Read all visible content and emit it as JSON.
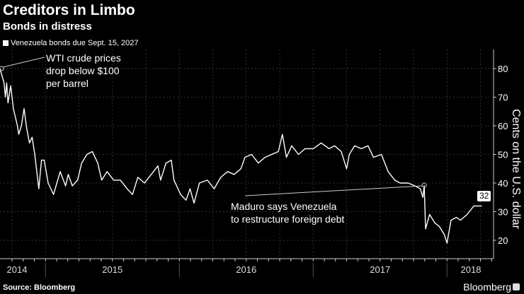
{
  "header": {
    "title": "Creditors in Limbo",
    "subtitle": "Bonds in distress"
  },
  "footer": {
    "source": "Source: Bloomberg",
    "brand": "Bloomberg"
  },
  "chart_data": {
    "type": "line",
    "title": "Creditors in Limbo",
    "subtitle": "Bonds in distress",
    "ylabel": "Cents on the U.S. dollar",
    "xlabel": "",
    "ylim": [
      13,
      85
    ],
    "xlim": [
      2014.66,
      2018.35
    ],
    "yticks": [
      "20",
      "30",
      "40",
      "50",
      "60",
      "70",
      "80"
    ],
    "xticks": [
      "2014",
      "2015",
      "2016",
      "2017",
      "2018"
    ],
    "legend": "top-left",
    "last_value_label": "32",
    "series": [
      {
        "name": "Venezuela bonds due Sept. 15, 2027",
        "color": "#ffffff",
        "x": [
          2014.66,
          2014.69,
          2014.7,
          2014.71,
          2014.72,
          2014.74,
          2014.76,
          2014.79,
          2014.8,
          2014.82,
          2014.84,
          2014.86,
          2014.88,
          2014.9,
          2014.92,
          2014.95,
          2014.97,
          2014.99,
          2015.02,
          2015.06,
          2015.11,
          2015.15,
          2015.17,
          2015.2,
          2015.24,
          2015.27,
          2015.31,
          2015.35,
          2015.39,
          2015.42,
          2015.46,
          2015.51,
          2015.56,
          2015.61,
          2015.65,
          2015.69,
          2015.74,
          2015.79,
          2015.84,
          2015.86,
          2015.9,
          2015.94,
          2015.96,
          2016.01,
          2016.05,
          2016.08,
          2016.11,
          2016.15,
          2016.21,
          2016.26,
          2016.31,
          2016.36,
          2016.41,
          2016.46,
          2016.49,
          2016.54,
          2016.59,
          2016.64,
          2016.69,
          2016.74,
          2016.77,
          2016.8,
          2016.84,
          2016.89,
          2016.94,
          2017.0,
          2017.06,
          2017.12,
          2017.16,
          2017.21,
          2017.25,
          2017.27,
          2017.31,
          2017.36,
          2017.41,
          2017.45,
          2017.51,
          2017.56,
          2017.61,
          2017.65,
          2017.71,
          2017.76,
          2017.8,
          2017.82,
          2017.83,
          2017.84,
          2017.87,
          2017.91,
          2017.94,
          2017.98,
          2018.0,
          2018.03,
          2018.07,
          2018.1,
          2018.15,
          2018.2,
          2018.26
        ],
        "values": [
          80,
          75,
          70,
          75,
          68,
          74,
          66,
          60,
          57,
          60,
          66,
          59,
          54,
          56,
          50,
          38,
          48,
          48,
          40,
          36,
          44,
          39,
          43,
          39,
          41,
          47,
          50,
          51,
          47,
          41,
          44,
          41,
          41,
          38,
          36,
          42,
          40,
          43,
          46,
          41,
          47,
          48,
          41,
          36,
          34,
          38,
          33,
          40,
          41,
          38,
          42,
          44,
          43,
          45,
          49,
          50,
          47,
          49,
          50,
          51,
          57,
          49,
          53,
          50,
          52,
          52,
          54,
          52,
          53,
          51,
          45,
          50,
          53,
          52,
          53,
          49,
          50,
          44,
          41,
          40,
          40,
          39,
          38,
          35,
          39,
          24,
          29,
          26,
          25,
          22,
          19,
          27,
          28,
          27,
          29,
          32,
          32
        ]
      }
    ],
    "annotations": [
      {
        "text_lines": [
          "WTI crude prices",
          "drop below $100",
          "per barrel"
        ],
        "x": 2014.66,
        "y": 80
      },
      {
        "text_lines": [
          "Maduro says Venezuela",
          "to restructure foreign debt"
        ],
        "x": 2017.83,
        "y": 39
      }
    ]
  }
}
